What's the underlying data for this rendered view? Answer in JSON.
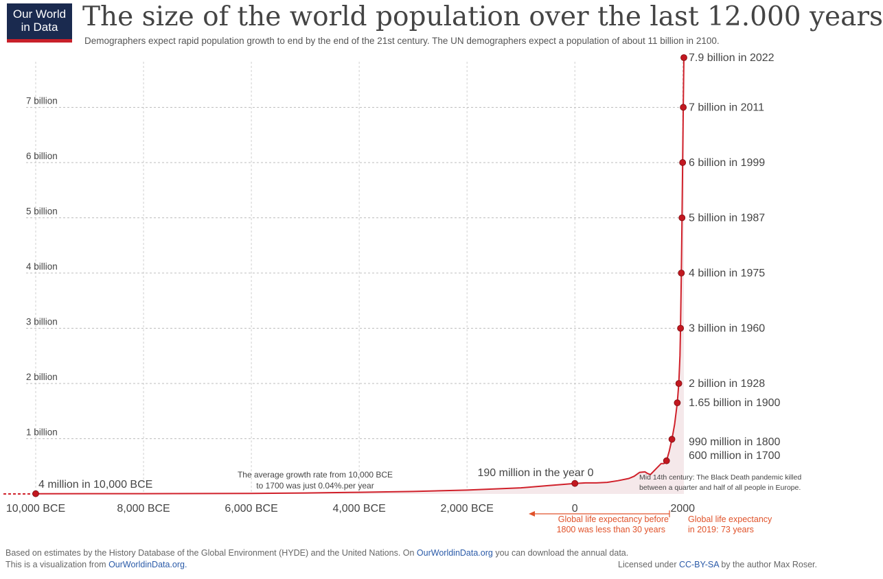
{
  "logo": {
    "line1": "Our World",
    "line2": "in Data"
  },
  "title": "The size of the world population over the last 12.000 years",
  "subtitle": "Demographers expect rapid population growth to end by the end of the 21st century. The UN demographers expect a population of about 11 billion in 2100.",
  "colors": {
    "series": "#d0202a",
    "marker": "#c21820",
    "annotation": "#e0522a",
    "grid": "#cfcfcf",
    "area": "#f5e8ea",
    "text": "#444444"
  },
  "chart_data": {
    "type": "line",
    "xlim": [
      -10500,
      2022
    ],
    "ylim": [
      0,
      7.9
    ],
    "x_ticks": [
      {
        "value": -10000,
        "label": "10,000 BCE"
      },
      {
        "value": -8000,
        "label": "8,000 BCE"
      },
      {
        "value": -6000,
        "label": "6,000 BCE"
      },
      {
        "value": -4000,
        "label": "4,000 BCE"
      },
      {
        "value": -2000,
        "label": "2,000 BCE"
      },
      {
        "value": 0,
        "label": "0"
      },
      {
        "value": 2000,
        "label": "2000"
      }
    ],
    "y_ticks": [
      {
        "value": 1,
        "label": "1 billion"
      },
      {
        "value": 2,
        "label": "2 billion"
      },
      {
        "value": 3,
        "label": "3 billion"
      },
      {
        "value": 4,
        "label": "4 billion"
      },
      {
        "value": 5,
        "label": "5 billion"
      },
      {
        "value": 6,
        "label": "6 billion"
      },
      {
        "value": 7,
        "label": "7 billion"
      }
    ],
    "series": [
      {
        "x": [
          -10000,
          -8000,
          -6000,
          -5000,
          -4000,
          -3000,
          -2000,
          -1000,
          -500,
          0,
          200,
          400,
          600,
          800,
          1000,
          1100,
          1200,
          1300,
          1350,
          1400,
          1500,
          1600,
          1650,
          1700,
          1750,
          1800,
          1850,
          1900,
          1928,
          1950,
          1960,
          1975,
          1987,
          1999,
          2011,
          2022
        ],
        "y": [
          0.004,
          0.005,
          0.01,
          0.018,
          0.03,
          0.045,
          0.07,
          0.11,
          0.15,
          0.19,
          0.2,
          0.2,
          0.21,
          0.24,
          0.28,
          0.32,
          0.39,
          0.4,
          0.37,
          0.35,
          0.45,
          0.55,
          0.55,
          0.6,
          0.77,
          0.99,
          1.26,
          1.65,
          2.0,
          2.5,
          3.0,
          4.0,
          5.0,
          6.0,
          7.0,
          7.9
        ]
      }
    ],
    "markers": [
      {
        "x": -10000,
        "y": 0.004,
        "label": "4 million in 10,000 BCE"
      },
      {
        "x": 0,
        "y": 0.19,
        "label": "190 million in the year 0"
      },
      {
        "x": 1700,
        "y": 0.6,
        "label": "600 million in 1700"
      },
      {
        "x": 1800,
        "y": 0.99,
        "label": "990 million in 1800"
      },
      {
        "x": 1900,
        "y": 1.65,
        "label": "1.65 billion in 1900"
      },
      {
        "x": 1928,
        "y": 2.0,
        "label": "2 billion in 1928"
      },
      {
        "x": 1960,
        "y": 3.0,
        "label": "3 billion in 1960"
      },
      {
        "x": 1975,
        "y": 4.0,
        "label": "4 billion in 1975"
      },
      {
        "x": 1987,
        "y": 5.0,
        "label": "5 billion in 1987"
      },
      {
        "x": 1999,
        "y": 6.0,
        "label": "6 billion in 1999"
      },
      {
        "x": 2011,
        "y": 7.0,
        "label": "7 billion in 2011"
      },
      {
        "x": 2022,
        "y": 7.9,
        "label": "7.9 billion in 2022"
      }
    ],
    "notes": {
      "growth_rate": [
        "The average growth rate from 10,000 BCE",
        "to 1700 was just  0.04%.per year"
      ],
      "black_death": [
        "Mid 14th century: The Black Death pandemic killed",
        "between a quarter and half of all people in Europe."
      ],
      "life_before": [
        "Global life expectancy before",
        "1800 was less than 30 years"
      ],
      "life_2019": [
        "Global life expectancy",
        "in 2019: 73 years"
      ]
    },
    "grid": true
  },
  "footer": {
    "line1_pre": "Based on estimates by the History Database of the Global Environment (HYDE) and the United Nations. On ",
    "line1_link": "OurWorldinData.org",
    "line1_post": " you can download the annual data.",
    "line2_pre": "This is a visualization from ",
    "line2_link": "OurWorldinData.org.",
    "license_pre": "Licensed under ",
    "license_link": "CC-BY-SA",
    "license_post": " by the author Max Roser."
  }
}
